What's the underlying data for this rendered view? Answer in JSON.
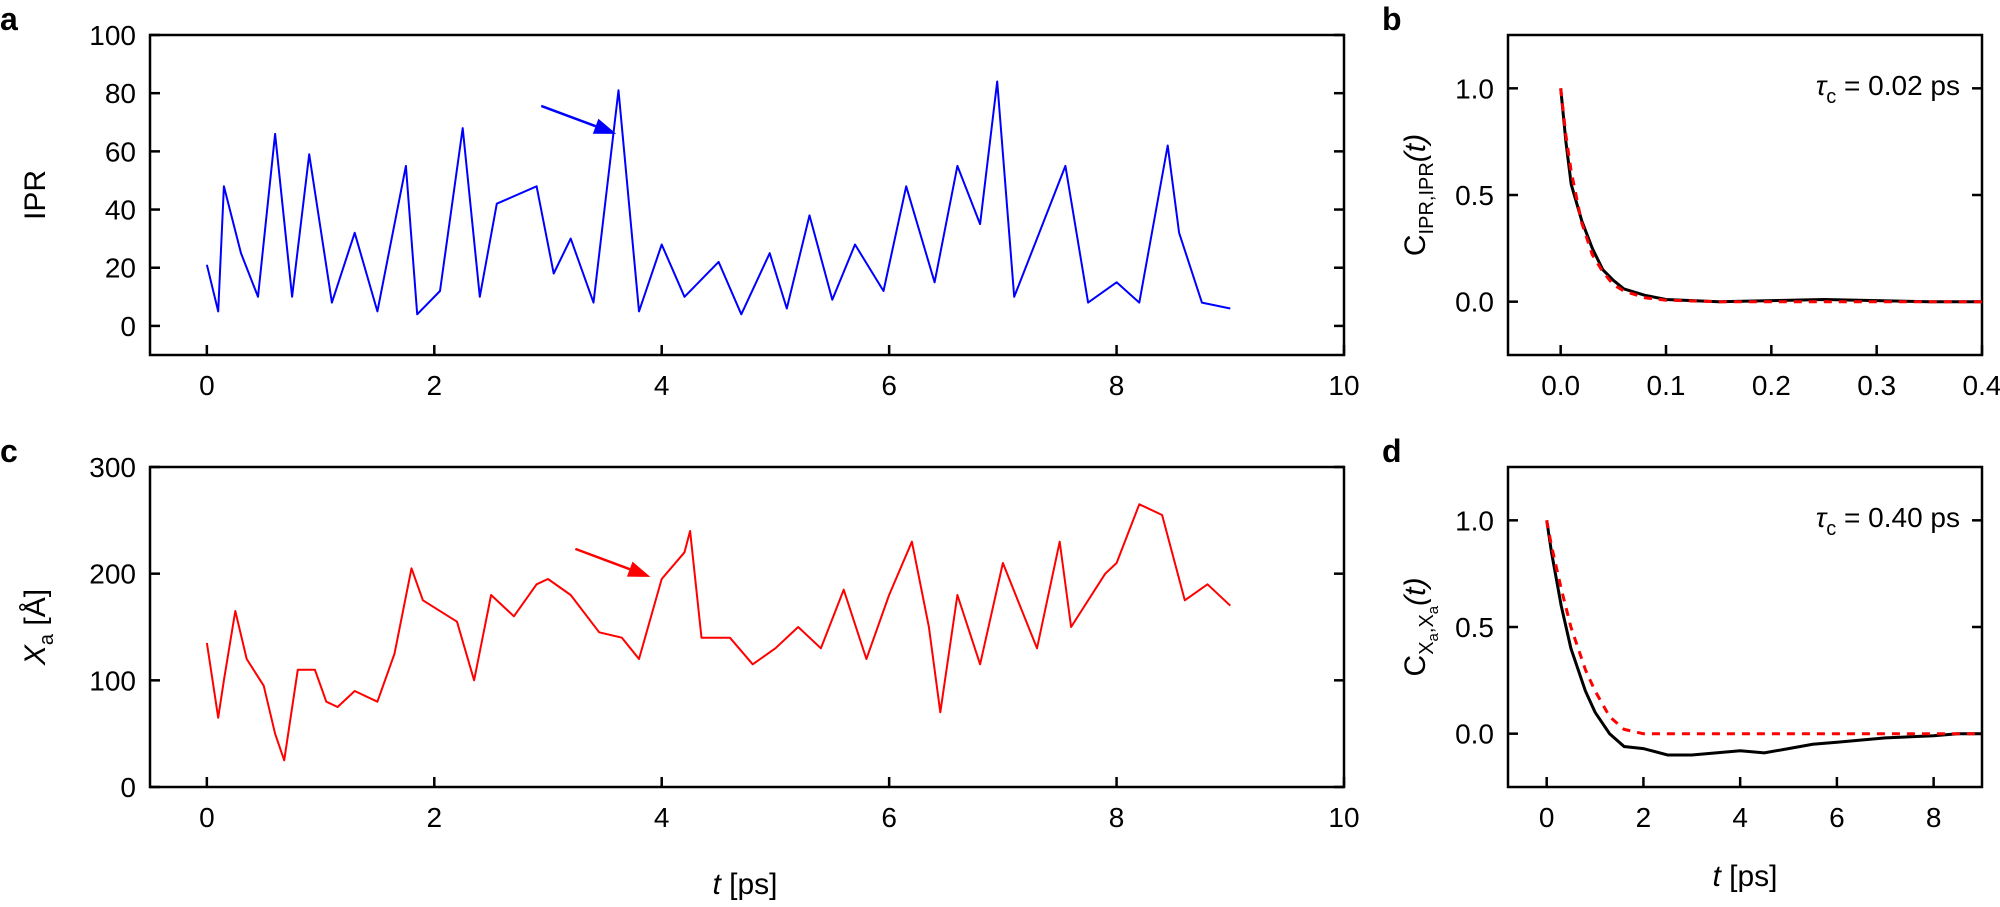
{
  "colors": {
    "ipr": "#0000ff",
    "xa": "#ff0000",
    "acf": "#000000",
    "fit": "#ff0000"
  },
  "panels": {
    "a": {
      "label": "a",
      "chart_data": {
        "type": "line",
        "ylabel": "IPR",
        "xlim": [
          -0.5,
          10
        ],
        "ylim": [
          -10,
          100
        ],
        "xticks": [
          0,
          2,
          4,
          6,
          8,
          10
        ],
        "yticks": [
          0,
          20,
          40,
          60,
          80,
          100
        ],
        "x": [
          0,
          0.1,
          0.15,
          0.3,
          0.45,
          0.6,
          0.75,
          0.9,
          1.1,
          1.3,
          1.5,
          1.75,
          1.85,
          2.05,
          2.25,
          2.4,
          2.55,
          2.9,
          3.05,
          3.2,
          3.4,
          3.62,
          3.8,
          4.0,
          4.2,
          4.5,
          4.7,
          4.95,
          5.1,
          5.3,
          5.5,
          5.7,
          5.95,
          6.15,
          6.4,
          6.6,
          6.8,
          6.95,
          7.1,
          7.3,
          7.55,
          7.75,
          8.0,
          8.2,
          8.45,
          8.55,
          8.75,
          9.0
        ],
        "y": [
          21,
          5,
          48,
          25,
          10,
          66,
          10,
          59,
          8,
          32,
          5,
          55,
          4,
          12,
          68,
          10,
          42,
          48,
          18,
          30,
          8,
          81,
          5,
          28,
          10,
          22,
          4,
          25,
          6,
          38,
          9,
          28,
          12,
          48,
          15,
          55,
          35,
          84,
          10,
          30,
          55,
          8,
          15,
          8,
          62,
          32,
          8,
          6
        ],
        "annotation": {
          "type": "arrow",
          "x": 3.6,
          "y": 66
        }
      }
    },
    "b": {
      "label": "b",
      "tau": "τ",
      "tau_sub": "c",
      "tau_rest": " = 0.02 ps",
      "ylabel_main": "C",
      "ylabel_sub": "IPR,IPR",
      "ylabel_tail": "(t)",
      "chart_data": {
        "type": "line",
        "xlim": [
          -0.05,
          0.4
        ],
        "ylim": [
          -0.25,
          1.25
        ],
        "xticks": [
          0.0,
          0.1,
          0.2,
          0.3,
          0.4
        ],
        "xticklabels": [
          "0.0",
          "0.1",
          "0.2",
          "0.3",
          "0.4"
        ],
        "yticks": [
          0.0,
          0.5,
          1.0
        ],
        "yticklabels": [
          "0.0",
          "0.5",
          "1.0"
        ],
        "series": [
          {
            "x": [
              0,
              0.005,
              0.01,
              0.02,
              0.03,
              0.04,
              0.05,
              0.06,
              0.08,
              0.1,
              0.15,
              0.2,
              0.25,
              0.3,
              0.35,
              0.4
            ],
            "y": [
              1.0,
              0.75,
              0.55,
              0.38,
              0.25,
              0.15,
              0.1,
              0.06,
              0.03,
              0.01,
              0.0,
              0.005,
              0.01,
              0.005,
              0.0,
              0.0
            ]
          },
          {
            "x": [
              0,
              0.005,
              0.01,
              0.02,
              0.03,
              0.04,
              0.05,
              0.06,
              0.08,
              0.1,
              0.15,
              0.2,
              0.25,
              0.3,
              0.35,
              0.4
            ],
            "y": [
              1.0,
              0.78,
              0.61,
              0.37,
              0.22,
              0.14,
              0.08,
              0.05,
              0.018,
              0.007,
              0.0,
              0.0,
              0.0,
              0.0,
              0.0,
              0.0
            ]
          }
        ]
      }
    },
    "c": {
      "label": "c",
      "ylabel_main": "X",
      "ylabel_sub": "a",
      "ylabel_tail": " [Å]",
      "chart_data": {
        "type": "line",
        "xlim": [
          -0.5,
          10
        ],
        "ylim": [
          0,
          300
        ],
        "xticks": [
          0,
          2,
          4,
          6,
          8,
          10
        ],
        "yticks": [
          0,
          100,
          200,
          300
        ],
        "x": [
          0,
          0.1,
          0.15,
          0.25,
          0.35,
          0.5,
          0.6,
          0.68,
          0.8,
          0.95,
          1.05,
          1.15,
          1.3,
          1.5,
          1.65,
          1.8,
          1.9,
          2.2,
          2.35,
          2.5,
          2.7,
          2.9,
          3.0,
          3.2,
          3.45,
          3.65,
          3.8,
          4.0,
          4.2,
          4.25,
          4.35,
          4.6,
          4.8,
          5.0,
          5.2,
          5.4,
          5.6,
          5.8,
          6.0,
          6.2,
          6.35,
          6.45,
          6.6,
          6.8,
          7.0,
          7.3,
          7.5,
          7.6,
          7.9,
          8.0,
          8.2,
          8.4,
          8.6,
          8.8,
          9.0
        ],
        "y": [
          135,
          65,
          100,
          165,
          120,
          95,
          50,
          25,
          110,
          110,
          80,
          75,
          90,
          80,
          125,
          205,
          175,
          155,
          100,
          180,
          160,
          190,
          195,
          180,
          145,
          140,
          120,
          195,
          220,
          240,
          140,
          140,
          115,
          130,
          150,
          130,
          185,
          120,
          180,
          230,
          150,
          70,
          180,
          115,
          210,
          130,
          230,
          150,
          200,
          210,
          265,
          255,
          175,
          190,
          170
        ],
        "annotation": {
          "type": "arrow",
          "x": 3.9,
          "y": 197
        }
      }
    },
    "d": {
      "label": "d",
      "tau": "τ",
      "tau_sub": "c",
      "tau_rest": " = 0.40 ps",
      "ylabel_main": "C",
      "ylabel_sub1": "X",
      "ylabel_subsub1": "a",
      "ylabel_sep": ",",
      "ylabel_sub2": "X",
      "ylabel_subsub2": "a",
      "ylabel_tail": "(t)",
      "chart_data": {
        "type": "line",
        "xlim": [
          -0.8,
          9
        ],
        "ylim": [
          -0.25,
          1.25
        ],
        "xticks": [
          0,
          2,
          4,
          6,
          8
        ],
        "yticks": [
          0.0,
          0.5,
          1.0
        ],
        "yticklabels": [
          "0.0",
          "0.5",
          "1.0"
        ],
        "series": [
          {
            "x": [
              0,
              0.1,
              0.3,
              0.5,
              0.8,
              1.0,
              1.3,
              1.6,
              2.0,
              2.5,
              3.0,
              3.5,
              4.0,
              4.5,
              5.0,
              5.5,
              6.0,
              7.0,
              8.0,
              8.5,
              9.0
            ],
            "y": [
              1.0,
              0.85,
              0.6,
              0.4,
              0.2,
              0.1,
              0.0,
              -0.06,
              -0.07,
              -0.1,
              -0.1,
              -0.09,
              -0.08,
              -0.09,
              -0.07,
              -0.05,
              -0.04,
              -0.02,
              -0.01,
              0.0,
              0.0
            ]
          },
          {
            "x": [
              0,
              0.1,
              0.3,
              0.5,
              0.8,
              1.0,
              1.3,
              1.6,
              2.0,
              2.5,
              3.0,
              4.0,
              5.0,
              6.0,
              7.0,
              8.0,
              9.0
            ],
            "y": [
              1.0,
              0.88,
              0.68,
              0.5,
              0.3,
              0.2,
              0.08,
              0.02,
              0.0,
              0.0,
              0.0,
              0.0,
              0.0,
              0.0,
              0.0,
              0.0,
              0.0
            ]
          }
        ]
      }
    }
  },
  "shared_xlabel": {
    "var": "t",
    "unit": " [ps]"
  }
}
